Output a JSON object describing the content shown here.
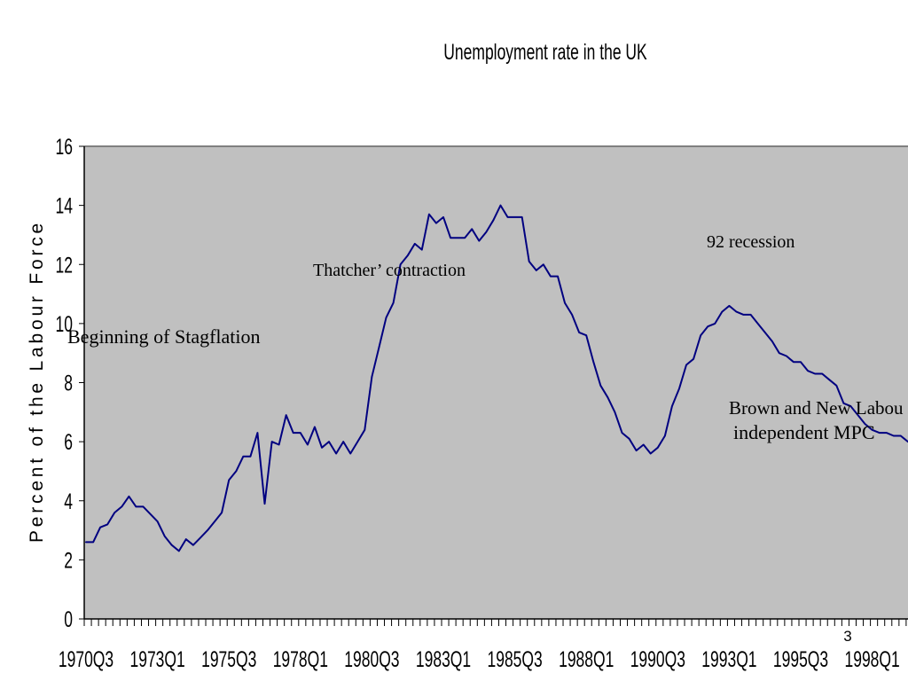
{
  "chart_data": {
    "type": "line",
    "title": "Unemployment rate in the UK",
    "xlabel": "",
    "ylabel": "Percent of the Labour Force",
    "ylim": [
      0,
      16
    ],
    "y_tick_labels": [
      "0",
      "2",
      "4",
      "6",
      "8",
      "10",
      "12",
      "14",
      "16"
    ],
    "x_tick_labels": [
      "1970Q3",
      "1973Q1",
      "1975Q3",
      "1978Q1",
      "1980Q3",
      "1983Q1",
      "1985Q3",
      "1988Q1",
      "1990Q3",
      "1993Q1",
      "1995Q3",
      "1998Q1"
    ],
    "series": [
      {
        "color": "#000080",
        "values": [
          2.6,
          2.6,
          3.1,
          3.2,
          3.6,
          3.8,
          4.15,
          3.8,
          3.8,
          3.55,
          3.3,
          2.8,
          2.5,
          2.3,
          2.7,
          2.5,
          2.75,
          3.0,
          3.3,
          3.6,
          4.7,
          5.0,
          5.5,
          5.5,
          6.3,
          3.9,
          6.0,
          5.9,
          6.9,
          6.3,
          6.3,
          5.9,
          6.5,
          5.8,
          6.0,
          5.6,
          6.0,
          5.6,
          6.0,
          6.4,
          8.2,
          9.2,
          10.2,
          10.7,
          12.0,
          12.3,
          12.7,
          12.5,
          13.7,
          13.4,
          13.6,
          12.9,
          12.9,
          12.9,
          13.2,
          12.8,
          13.1,
          13.5,
          14.0,
          13.6,
          13.6,
          13.6,
          12.1,
          11.8,
          12.0,
          11.6,
          11.6,
          10.7,
          10.3,
          9.7,
          9.6,
          8.7,
          7.9,
          7.5,
          7.0,
          6.3,
          6.1,
          5.7,
          5.9,
          5.6,
          5.8,
          6.2,
          7.2,
          7.8,
          8.6,
          8.8,
          9.6,
          9.9,
          10.0,
          10.4,
          10.6,
          10.4,
          10.3,
          10.3,
          10.0,
          9.7,
          9.4,
          9.0,
          8.9,
          8.7,
          8.7,
          8.4,
          8.3,
          8.3,
          8.1,
          7.9,
          7.3,
          7.2,
          6.9,
          6.6,
          6.4,
          6.3,
          6.3,
          6.2,
          6.2,
          6.0
        ]
      }
    ],
    "annotations": [
      "Beginning of Stagflation",
      "Thatcher’ contraction",
      "92 recession",
      "Brown and New Labou",
      "independent MPC"
    ],
    "grid": false,
    "legend": "none",
    "plot_background": "#C0C0C0"
  },
  "slide": {
    "page_number": "3"
  }
}
